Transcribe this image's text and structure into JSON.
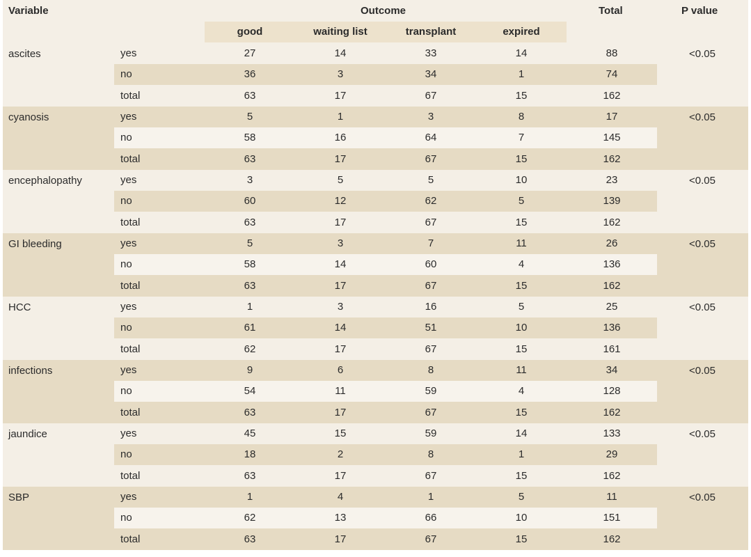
{
  "headers": {
    "variable": "Variable",
    "outcome": "Outcome",
    "total": "Total",
    "p_value": "P value",
    "outcome_cols": [
      "good",
      "waiting list",
      "transplant",
      "expired"
    ]
  },
  "colors": {
    "light_band": "#f4efe6",
    "dark_band": "#e6dbc4",
    "subheader": "#ede2cc"
  },
  "groups": [
    {
      "variable": "ascites",
      "p": "<0.05",
      "rows": [
        {
          "label": "yes",
          "values": [
            "27",
            "14",
            "33",
            "14",
            "88"
          ]
        },
        {
          "label": "no",
          "values": [
            "36",
            "3",
            "34",
            "1",
            "74"
          ]
        },
        {
          "label": "total",
          "values": [
            "63",
            "17",
            "67",
            "15",
            "162"
          ]
        }
      ]
    },
    {
      "variable": "cyanosis",
      "p": "<0.05",
      "rows": [
        {
          "label": "yes",
          "values": [
            "5",
            "1",
            "3",
            "8",
            "17"
          ]
        },
        {
          "label": "no",
          "values": [
            "58",
            "16",
            "64",
            "7",
            "145"
          ]
        },
        {
          "label": "total",
          "values": [
            "63",
            "17",
            "67",
            "15",
            "162"
          ]
        }
      ]
    },
    {
      "variable": "encephalopathy",
      "p": "<0.05",
      "rows": [
        {
          "label": "yes",
          "values": [
            "3",
            "5",
            "5",
            "10",
            "23"
          ]
        },
        {
          "label": "no",
          "values": [
            "60",
            "12",
            "62",
            "5",
            "139"
          ]
        },
        {
          "label": "total",
          "values": [
            "63",
            "17",
            "67",
            "15",
            "162"
          ]
        }
      ]
    },
    {
      "variable": "GI bleeding",
      "p": "<0.05",
      "rows": [
        {
          "label": "yes",
          "values": [
            "5",
            "3",
            "7",
            "11",
            "26"
          ]
        },
        {
          "label": "no",
          "values": [
            "58",
            "14",
            "60",
            "4",
            "136"
          ]
        },
        {
          "label": "total",
          "values": [
            "63",
            "17",
            "67",
            "15",
            "162"
          ]
        }
      ]
    },
    {
      "variable": "HCC",
      "p": "<0.05",
      "rows": [
        {
          "label": "yes",
          "values": [
            "1",
            "3",
            "16",
            "5",
            "25"
          ]
        },
        {
          "label": "no",
          "values": [
            "61",
            "14",
            "51",
            "10",
            "136"
          ]
        },
        {
          "label": "total",
          "values": [
            "62",
            "17",
            "67",
            "15",
            "161"
          ]
        }
      ]
    },
    {
      "variable": "infections",
      "p": "<0.05",
      "rows": [
        {
          "label": "yes",
          "values": [
            "9",
            "6",
            "8",
            "11",
            "34"
          ]
        },
        {
          "label": "no",
          "values": [
            "54",
            "11",
            "59",
            "4",
            "128"
          ]
        },
        {
          "label": "total",
          "values": [
            "63",
            "17",
            "67",
            "15",
            "162"
          ]
        }
      ]
    },
    {
      "variable": "jaundice",
      "p": "<0.05",
      "rows": [
        {
          "label": "yes",
          "values": [
            "45",
            "15",
            "59",
            "14",
            "133"
          ]
        },
        {
          "label": "no",
          "values": [
            "18",
            "2",
            "8",
            "1",
            "29"
          ]
        },
        {
          "label": "total",
          "values": [
            "63",
            "17",
            "67",
            "15",
            "162"
          ]
        }
      ]
    },
    {
      "variable": "SBP",
      "p": "<0.05",
      "rows": [
        {
          "label": "yes",
          "values": [
            "1",
            "4",
            "1",
            "5",
            "11"
          ]
        },
        {
          "label": "no",
          "values": [
            "62",
            "13",
            "66",
            "10",
            "151"
          ]
        },
        {
          "label": "total",
          "values": [
            "63",
            "17",
            "67",
            "15",
            "162"
          ]
        }
      ]
    }
  ]
}
